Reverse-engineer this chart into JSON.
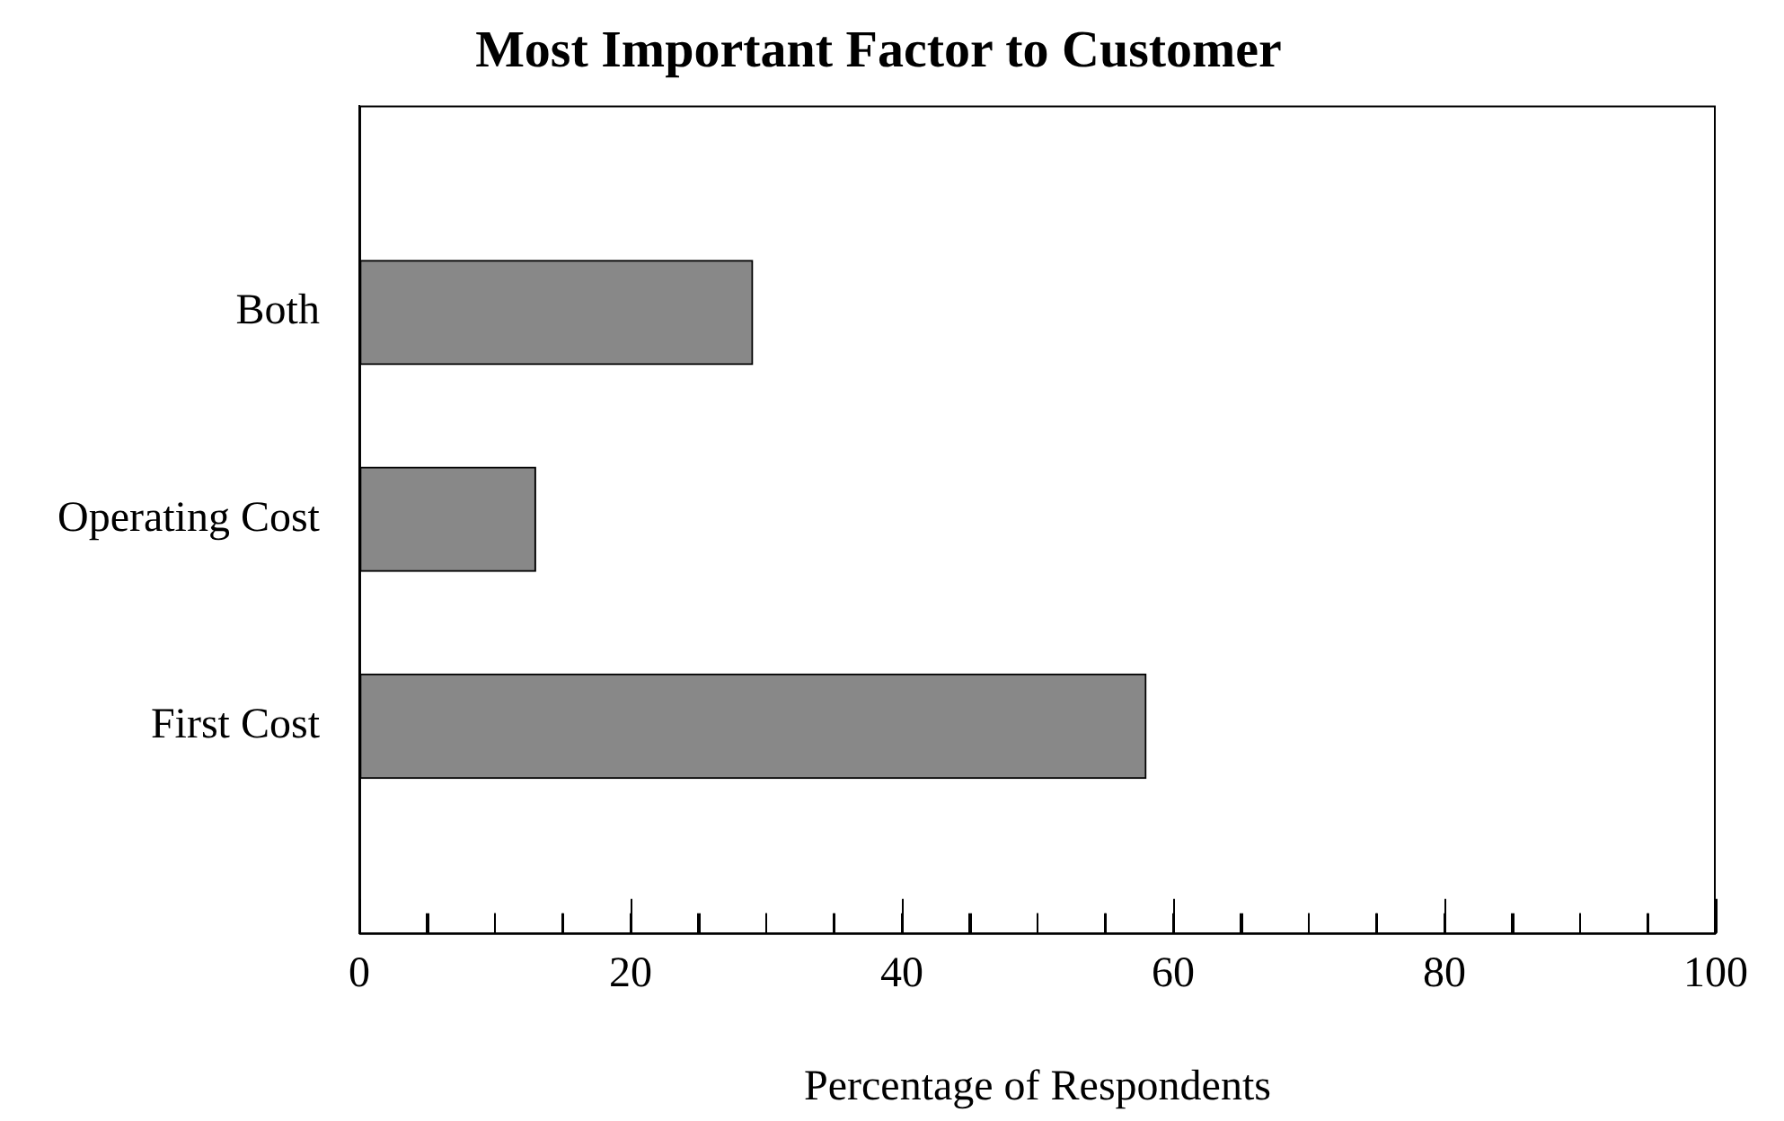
{
  "chart_data": {
    "type": "bar",
    "orientation": "horizontal",
    "title": "Most Important Factor to Customer",
    "xlabel": "Percentage of Respondents",
    "categories": [
      "Both",
      "Operating Cost",
      "First Cost"
    ],
    "values": [
      29,
      13,
      58
    ],
    "color": "#888888",
    "xlim": [
      0,
      100
    ],
    "xticks": [
      0,
      {
        "value": 5,
        "label": null
      },
      {
        "value": 10,
        "label": null
      },
      {
        "value": 15,
        "label": null
      },
      20,
      {
        "value": 25,
        "label": null
      },
      {
        "value": 30,
        "label": null
      },
      {
        "value": 35,
        "label": null
      },
      40,
      {
        "value": 45,
        "label": null
      },
      {
        "value": 50,
        "label": null
      },
      {
        "value": 55,
        "label": null
      },
      60,
      {
        "value": 65,
        "label": null
      },
      {
        "value": 70,
        "label": null
      },
      {
        "value": 75,
        "label": null
      },
      80,
      {
        "value": 85,
        "label": null
      },
      {
        "value": 90,
        "label": null
      },
      {
        "value": 95,
        "label": null
      },
      100
    ],
    "grid": false,
    "legend": false
  }
}
